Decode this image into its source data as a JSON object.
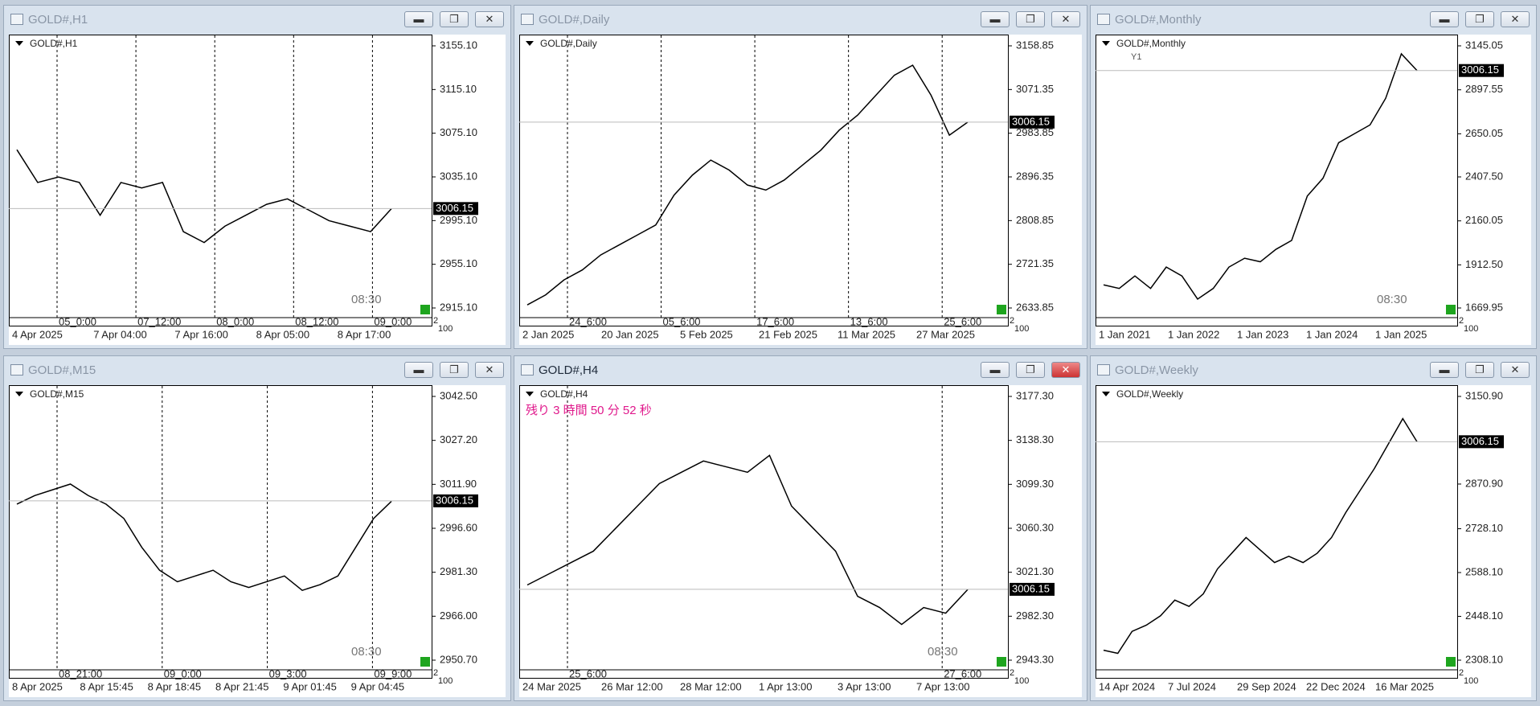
{
  "windows": [
    {
      "title": "GOLD#,H1",
      "label": "GOLD#,H1",
      "current": "3006.15",
      "yticks": [
        "3155.10",
        "3115.10",
        "3075.10",
        "3035.10",
        "2995.10",
        "2955.10",
        "2915.10"
      ],
      "xticks": [
        "4 Apr 2025",
        "7 Apr 04:00",
        "7 Apr 16:00",
        "8 Apr 05:00",
        "8 Apr 17:00"
      ],
      "vline_labels": [
        "05_0:00",
        "07_12:00",
        "08_0:00",
        "08_12:00",
        "09_0:00"
      ],
      "corner": [
        "2",
        "100"
      ],
      "annotation": "08:30",
      "prices": [
        3060,
        3030,
        3035,
        3030,
        3000,
        3030,
        3025,
        3030,
        2985,
        2975,
        2990,
        3000,
        3010,
        3015,
        3005,
        2995,
        2990,
        2985,
        3006
      ]
    },
    {
      "title": "GOLD#,Daily",
      "label": "GOLD#,Daily",
      "current": "3006.15",
      "yticks": [
        "3158.85",
        "3071.35",
        "2983.85",
        "2896.35",
        "2808.85",
        "2721.35",
        "2633.85"
      ],
      "xticks": [
        "2 Jan 2025",
        "20 Jan 2025",
        "5 Feb 2025",
        "21 Feb 2025",
        "11 Mar 2025",
        "27 Mar 2025"
      ],
      "vline_labels": [
        "24_6:00",
        "05_6:00",
        "17_6:00",
        "13_6:00",
        "25_6:00"
      ],
      "corner": [
        "2",
        "100"
      ],
      "prices": [
        2640,
        2660,
        2690,
        2710,
        2740,
        2760,
        2780,
        2800,
        2860,
        2900,
        2930,
        2910,
        2880,
        2870,
        2890,
        2920,
        2950,
        2990,
        3020,
        3060,
        3100,
        3120,
        3060,
        2980,
        3006
      ]
    },
    {
      "title": "GOLD#,Monthly",
      "label": "GOLD#,Monthly",
      "marker": "Y1",
      "current": "3006.15",
      "yticks": [
        "3145.05",
        "2897.55",
        "2650.05",
        "2407.50",
        "2160.05",
        "1912.50",
        "1669.95"
      ],
      "xticks": [
        "1 Jan 2021",
        "1 Jan 2022",
        "1 Jan 2023",
        "1 Jan 2024",
        "1 Jan 2025"
      ],
      "corner": [
        "2",
        "100"
      ],
      "annotation": "08:30",
      "prices": [
        1800,
        1780,
        1850,
        1780,
        1900,
        1850,
        1720,
        1780,
        1900,
        1950,
        1930,
        2000,
        2050,
        2300,
        2400,
        2600,
        2650,
        2700,
        2850,
        3100,
        3006
      ]
    },
    {
      "title": "GOLD#,M15",
      "label": "GOLD#,M15",
      "current": "3006.15",
      "yticks": [
        "3042.50",
        "3027.20",
        "3011.90",
        "2996.60",
        "2981.30",
        "2966.00",
        "2950.70"
      ],
      "xticks": [
        "8 Apr 2025",
        "8 Apr 15:45",
        "8 Apr 18:45",
        "8 Apr 21:45",
        "9 Apr 01:45",
        "9 Apr 04:45"
      ],
      "vline_labels": [
        "08_21:00",
        "09_0:00",
        "09_3:00",
        "09_9:00"
      ],
      "corner": [
        "2",
        "100"
      ],
      "annotation": "08:30",
      "prices": [
        3005,
        3008,
        3010,
        3012,
        3008,
        3005,
        3000,
        2990,
        2982,
        2978,
        2980,
        2982,
        2978,
        2976,
        2978,
        2980,
        2975,
        2977,
        2980,
        2990,
        3000,
        3006
      ]
    },
    {
      "title": "GOLD#,H4",
      "label": "GOLD#,H4",
      "countdown": "残り 3 時間 50 分 52 秒",
      "current": "3006.15",
      "yticks": [
        "3177.30",
        "3138.30",
        "3099.30",
        "3060.30",
        "3021.30",
        "2982.30",
        "2943.30"
      ],
      "xticks": [
        "24 Mar 2025",
        "26 Mar 12:00",
        "28 Mar 12:00",
        "1 Apr 13:00",
        "3 Apr 13:00",
        "7 Apr 13:00"
      ],
      "vline_labels": [
        "25_6:00",
        "27_6:00"
      ],
      "corner": [
        "2",
        "100"
      ],
      "annotation": "08:30",
      "prices": [
        3010,
        3020,
        3030,
        3040,
        3060,
        3080,
        3100,
        3110,
        3120,
        3115,
        3110,
        3125,
        3080,
        3060,
        3040,
        3000,
        2990,
        2975,
        2990,
        2985,
        3006
      ]
    },
    {
      "title": "GOLD#,Weekly",
      "label": "GOLD#,Weekly",
      "current": "3006.15",
      "yticks": [
        "3150.90",
        "2870.90",
        "2728.10",
        "2588.10",
        "2448.10",
        "2308.10"
      ],
      "xticks": [
        "14 Apr 2024",
        "7 Jul 2024",
        "29 Sep 2024",
        "22 Dec 2024",
        "16 Mar 2025"
      ],
      "corner": [
        "2",
        "100"
      ],
      "prices": [
        2340,
        2330,
        2400,
        2420,
        2450,
        2500,
        2480,
        2520,
        2600,
        2650,
        2700,
        2660,
        2620,
        2640,
        2620,
        2650,
        2700,
        2780,
        2850,
        2920,
        3000,
        3080,
        3006
      ]
    }
  ]
}
